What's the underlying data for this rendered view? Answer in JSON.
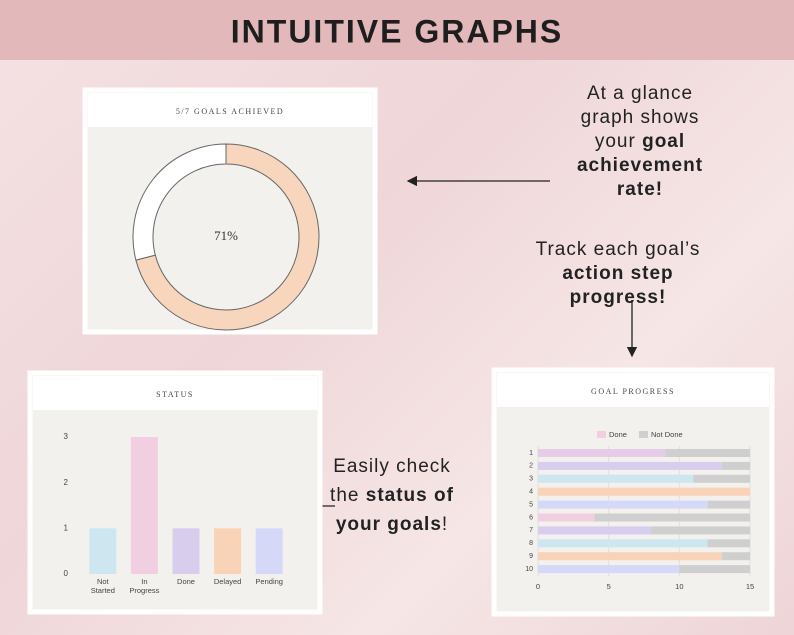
{
  "header": {
    "title": "INTUITIVE GRAPHS"
  },
  "callouts": [
    {
      "text": "At a glance graph shows your",
      "bold": "goal achievement rate!"
    },
    {
      "text": "Track each goal’s",
      "bold": "action step progress!"
    },
    {
      "text": "Easily check the",
      "bold": "status of your goals",
      "tail": "!"
    }
  ],
  "chart_data": [
    {
      "type": "pie",
      "title": "5/7 GOALS ACHIEVED",
      "center_label": "71%",
      "values": [
        71,
        29
      ],
      "colors": [
        "#f8d5bd",
        "#ffffff"
      ]
    },
    {
      "type": "bar",
      "title": "STATUS",
      "categories": [
        "Not Started",
        "In Progress",
        "Done",
        "Delayed",
        "Pending"
      ],
      "values": [
        1,
        3,
        1,
        1,
        1
      ],
      "colors": [
        "#cde6ef",
        "#f2cfe0",
        "#d9cdee",
        "#f8d3b8",
        "#d5d8f7"
      ],
      "ylim": [
        0,
        3
      ],
      "yticks": [
        0,
        1,
        2,
        3
      ]
    },
    {
      "type": "barh",
      "title": "GOAL PROGRESS",
      "categories": [
        "1",
        "2",
        "3",
        "4",
        "5",
        "6",
        "7",
        "8",
        "9",
        "10"
      ],
      "series": [
        {
          "name": "Done",
          "color": "#f2cfe0",
          "colors": [
            "#e6cce8",
            "#d9cdee",
            "#cde6ef",
            "#f8d3b8",
            "#d5d8f7",
            "#f2cfe0",
            "#d9cdee",
            "#cde6ef",
            "#f8d3b8",
            "#d5d8f7"
          ],
          "values": [
            9,
            13,
            11,
            15,
            12,
            4,
            8,
            12,
            13,
            10
          ]
        },
        {
          "name": "Not Done",
          "color": "#cfcfcf",
          "values": [
            6,
            2,
            4,
            0,
            3,
            11,
            7,
            3,
            2,
            5
          ]
        }
      ],
      "xlim": [
        0,
        15
      ],
      "xticks": [
        0,
        5,
        10,
        15
      ]
    }
  ]
}
